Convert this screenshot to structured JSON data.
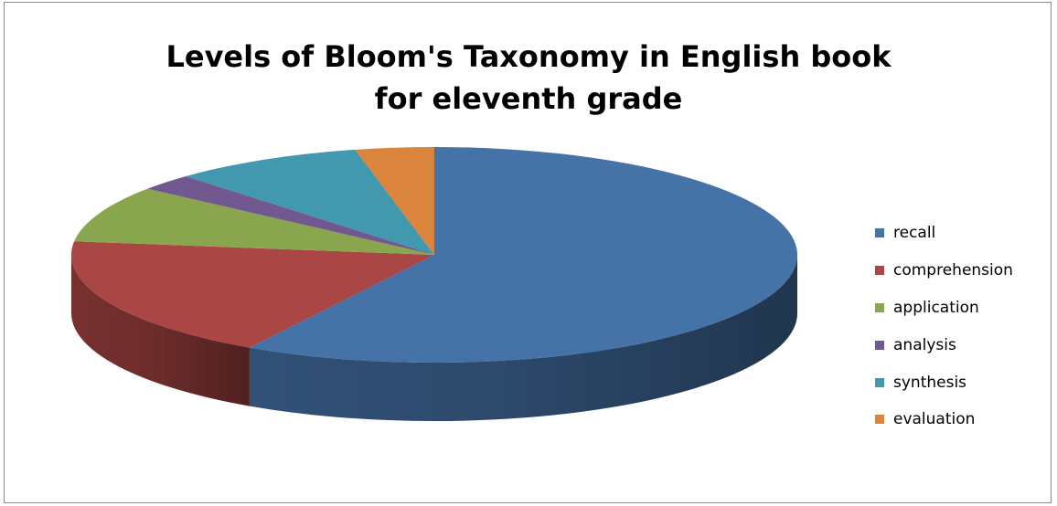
{
  "chart_data": {
    "type": "pie",
    "title_lines": [
      "Levels of Bloom's Taxonomy in English book",
      "for eleventh grade"
    ],
    "categories": [
      "recall",
      "comprehension",
      "application",
      "analysis",
      "synthesis",
      "evaluation"
    ],
    "values": [
      58.5,
      18.5,
      8.5,
      2.5,
      8.5,
      3.5
    ],
    "colors": [
      "#4572A7",
      "#AA4643",
      "#89A54E",
      "#71588F",
      "#4198AF",
      "#DB843D"
    ],
    "legend_position": "right",
    "style": "3d"
  }
}
